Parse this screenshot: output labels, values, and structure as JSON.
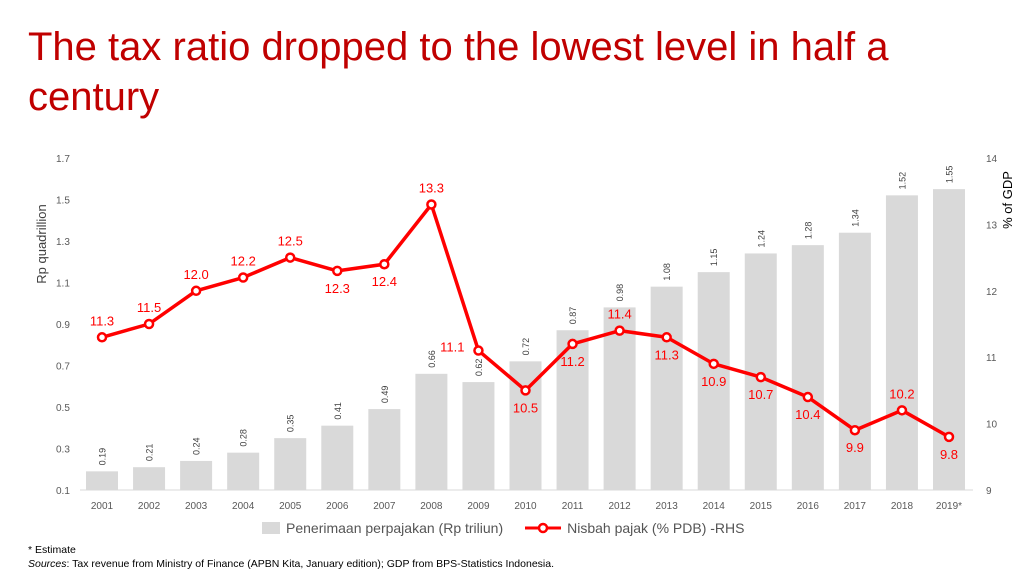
{
  "title": "The tax ratio dropped to the lowest level in half a century",
  "chart_data": {
    "type": "bar+line",
    "categories": [
      "2001",
      "2002",
      "2003",
      "2004",
      "2005",
      "2006",
      "2007",
      "2008",
      "2009",
      "2010",
      "2011",
      "2012",
      "2013",
      "2014",
      "2015",
      "2016",
      "2017",
      "2018",
      "2019*"
    ],
    "series": [
      {
        "name": "Penerimaan perpajakan (Rp triliun)",
        "type": "bar",
        "axis": "left",
        "color": "#d9d9d9",
        "values": [
          0.19,
          0.21,
          0.24,
          0.28,
          0.35,
          0.41,
          0.49,
          0.66,
          0.62,
          0.72,
          0.87,
          0.98,
          1.08,
          1.15,
          1.24,
          1.28,
          1.34,
          1.52,
          1.55
        ]
      },
      {
        "name": "Nisbah pajak (% PDB) -RHS",
        "type": "line",
        "axis": "right",
        "color": "#ff0000",
        "values": [
          11.3,
          11.5,
          12.0,
          12.2,
          12.5,
          12.3,
          12.4,
          13.3,
          11.1,
          10.5,
          11.2,
          11.4,
          11.3,
          10.9,
          10.7,
          10.4,
          9.9,
          10.2,
          9.8
        ],
        "label_labels": [
          "11.3",
          "11.5",
          "12.0",
          "12.2",
          "12.5",
          "12.3",
          "12.4",
          "13.3",
          "11.1",
          "10.5",
          "11.2",
          "11.4",
          "11.3",
          "10.9",
          "10.7",
          "10.4",
          "9.9",
          "10.2",
          "9.8"
        ],
        "label_placement": [
          "above",
          "above",
          "above",
          "above",
          "above",
          "below",
          "below",
          "above",
          "left",
          "below",
          "below",
          "above",
          "below",
          "below",
          "below",
          "below",
          "below",
          "above",
          "below"
        ]
      }
    ],
    "ylabel": "Rp quadrillion",
    "ylim": [
      0.1,
      1.7
    ],
    "yticks": [
      "0.1",
      "0.3",
      "0.5",
      "0.7",
      "0.9",
      "1.1",
      "1.3",
      "1.5",
      "1.7"
    ],
    "y2label": "% of GDP",
    "y2lim": [
      9,
      14
    ],
    "y2ticks": [
      "9",
      "10",
      "11",
      "12",
      "13",
      "14"
    ],
    "grid": false,
    "legend": "bottom"
  },
  "footnote": "* Estimate",
  "sources_label": "Sources",
  "sources_text": ": Tax revenue from Ministry of Finance (APBN Kita, January edition); GDP from BPS-Statistics Indonesia."
}
